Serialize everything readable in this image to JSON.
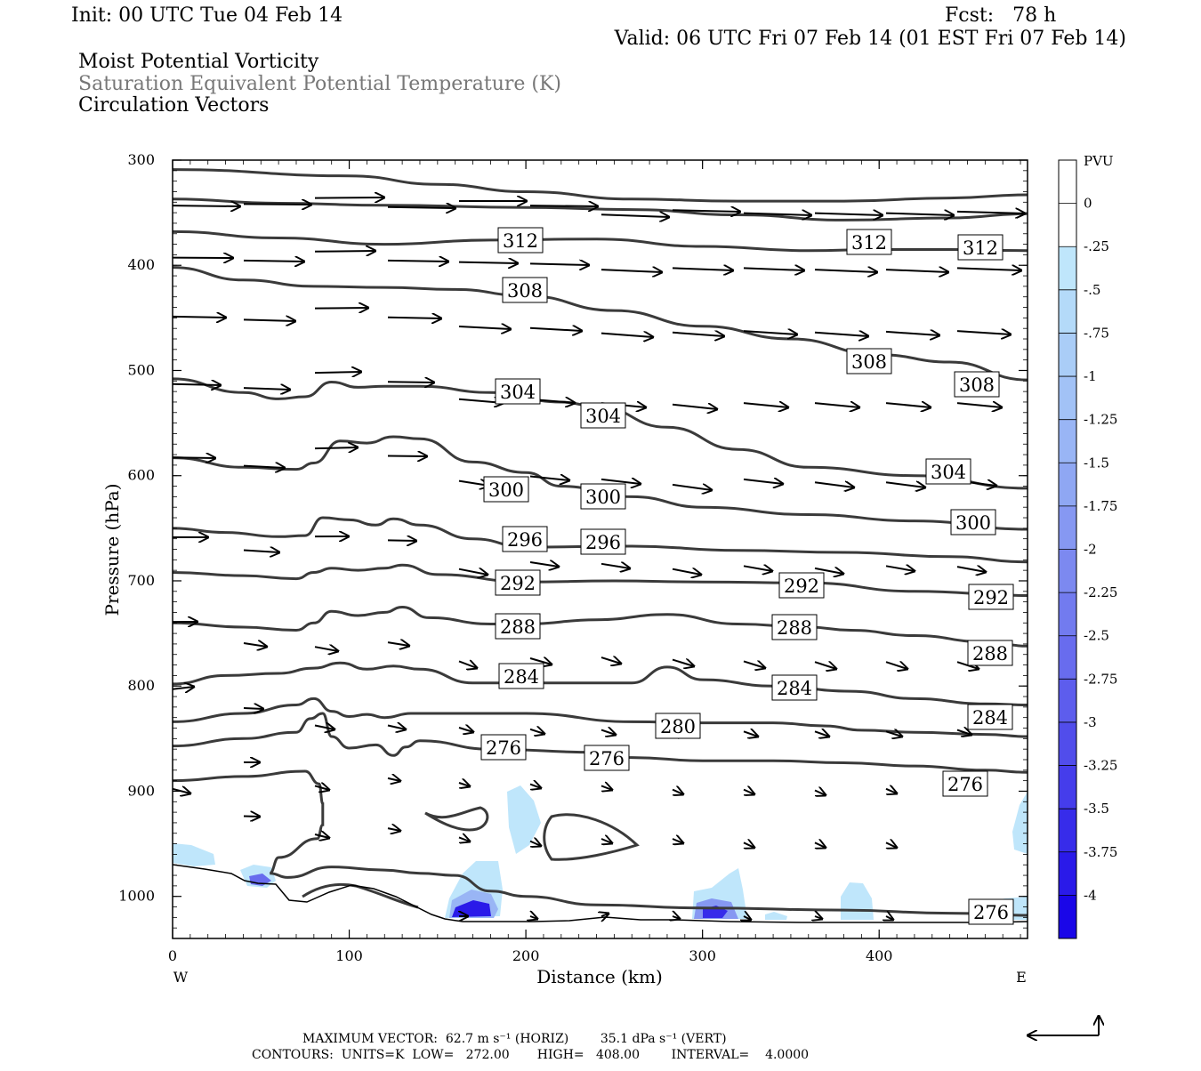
{
  "header": {
    "init": "Init: 00 UTC Tue 04 Feb 14",
    "fcst": "Fcst:   78 h",
    "valid": "Valid: 06 UTC Fri 07 Feb 14 (01 EST Fri 07 Feb 14)",
    "field1": "Moist Potential Vorticity",
    "field2": "Saturation Equivalent Potential Temperature (K)",
    "field3": "Circulation Vectors"
  },
  "colorbar": {
    "title": "PVU",
    "labels": [
      "0",
      "-.25",
      "-.5",
      "-.75",
      "-1",
      "-1.25",
      "-1.5",
      "-1.75",
      "-2",
      "-2.25",
      "-2.5",
      "-2.75",
      "-3",
      "-3.25",
      "-3.5",
      "-3.75",
      "-4"
    ],
    "colors": [
      "#ffffff",
      "#ffffff",
      "#bfe6fb",
      "#b4daf9",
      "#aacdf7",
      "#a2c2f6",
      "#99b5f5",
      "#8fa7f3",
      "#8698f2",
      "#7c89f0",
      "#727bef",
      "#686cee",
      "#5d5ded",
      "#514deb",
      "#453deb",
      "#372cea",
      "#2a1ae9",
      "#1a06e8"
    ]
  },
  "footer": {
    "max_vector": "MAXIMUM VECTOR:  62.7 m s⁻¹ (HORIZ)        35.1 dPa s⁻¹ (VERT)",
    "contours": "CONTOURS:  UNITS=K  LOW=   272.00       HIGH=   408.00        INTERVAL=    4.0000"
  },
  "chart_data": {
    "type": "cross-section",
    "xlabel": "Distance (km)",
    "ylabel": "Pressure (hPa)",
    "xlim": [
      0,
      484
    ],
    "ylim": [
      1040,
      300
    ],
    "x_ticks": [
      0,
      100,
      200,
      300,
      400
    ],
    "y_ticks": [
      300,
      400,
      500,
      600,
      700,
      800,
      900,
      1000
    ],
    "x_end_labels": {
      "left": "W",
      "right": "E"
    },
    "y_scale": "linear",
    "series": [
      {
        "name": "312",
        "points": [
          [
            0,
            309
          ],
          [
            100,
            315
          ],
          [
            150,
            323
          ],
          [
            200,
            330
          ],
          [
            260,
            337
          ],
          [
            320,
            339
          ],
          [
            380,
            339
          ],
          [
            440,
            336
          ],
          [
            484,
            333
          ]
        ]
      },
      {
        "name": "312",
        "points": [
          [
            0,
            337
          ],
          [
            60,
            341
          ],
          [
            120,
            343
          ],
          [
            200,
            345
          ],
          [
            260,
            347
          ],
          [
            320,
            352
          ],
          [
            380,
            357
          ],
          [
            440,
            355
          ],
          [
            484,
            351
          ]
        ]
      },
      {
        "name": "312",
        "points": [
          [
            0,
            368
          ],
          [
            60,
            374
          ],
          [
            120,
            380
          ],
          [
            180,
            376
          ],
          [
            240,
            375
          ],
          [
            300,
            382
          ],
          [
            360,
            386
          ],
          [
            400,
            385
          ],
          [
            440,
            385
          ],
          [
            484,
            386
          ]
        ]
      },
      {
        "name": "308",
        "points": [
          [
            0,
            402
          ],
          [
            40,
            414
          ],
          [
            80,
            420
          ],
          [
            120,
            421
          ],
          [
            160,
            423
          ],
          [
            200,
            429
          ],
          [
            250,
            443
          ],
          [
            300,
            458
          ],
          [
            350,
            470
          ],
          [
            400,
            485
          ],
          [
            440,
            492
          ],
          [
            484,
            509
          ]
        ]
      },
      {
        "name": "308",
        "points": [
          [
            0,
            508
          ],
          [
            40,
            521
          ],
          [
            60,
            527
          ],
          [
            75,
            525
          ],
          [
            90,
            511
          ],
          [
            105,
            516
          ],
          [
            120,
            515
          ],
          [
            140,
            515
          ],
          [
            180,
            521
          ],
          [
            220,
            530
          ],
          [
            240,
            534
          ],
          [
            280,
            554
          ],
          [
            320,
            575
          ],
          [
            360,
            592
          ],
          [
            420,
            600
          ],
          [
            484,
            612
          ]
        ]
      },
      {
        "name": "304",
        "points": [
          [
            0,
            583
          ],
          [
            40,
            592
          ],
          [
            70,
            594
          ],
          [
            80,
            588
          ],
          [
            95,
            567
          ],
          [
            110,
            569
          ],
          [
            125,
            563
          ],
          [
            140,
            565
          ],
          [
            170,
            587
          ],
          [
            200,
            597
          ],
          [
            220,
            610
          ],
          [
            260,
            620
          ],
          [
            300,
            630
          ],
          [
            360,
            637
          ],
          [
            420,
            643
          ],
          [
            484,
            651
          ]
        ]
      },
      {
        "name": "300",
        "points": [
          [
            0,
            650
          ],
          [
            30,
            654
          ],
          [
            60,
            658
          ],
          [
            75,
            657
          ],
          [
            85,
            640
          ],
          [
            100,
            642
          ],
          [
            115,
            647
          ],
          [
            125,
            641
          ],
          [
            140,
            647
          ],
          [
            170,
            660
          ],
          [
            200,
            668
          ],
          [
            260,
            667
          ],
          [
            320,
            671
          ],
          [
            380,
            673
          ],
          [
            440,
            677
          ],
          [
            484,
            682
          ]
        ]
      },
      {
        "name": "296",
        "points": [
          [
            0,
            692
          ],
          [
            40,
            695
          ],
          [
            70,
            698
          ],
          [
            80,
            692
          ],
          [
            90,
            688
          ],
          [
            105,
            690
          ],
          [
            120,
            688
          ],
          [
            130,
            685
          ],
          [
            150,
            694
          ],
          [
            200,
            701
          ],
          [
            250,
            700
          ],
          [
            300,
            701
          ],
          [
            360,
            702
          ],
          [
            420,
            710
          ],
          [
            484,
            714
          ]
        ]
      },
      {
        "name": "292",
        "points": [
          [
            0,
            740
          ],
          [
            40,
            744
          ],
          [
            70,
            747
          ],
          [
            80,
            740
          ],
          [
            90,
            729
          ],
          [
            105,
            733
          ],
          [
            120,
            730
          ],
          [
            130,
            725
          ],
          [
            145,
            735
          ],
          [
            180,
            741
          ],
          [
            200,
            741
          ],
          [
            240,
            737
          ],
          [
            280,
            732
          ],
          [
            320,
            741
          ],
          [
            360,
            744
          ],
          [
            384,
            747
          ],
          [
            420,
            752
          ],
          [
            460,
            758
          ],
          [
            484,
            762
          ]
        ]
      },
      {
        "name": "288",
        "points": [
          [
            0,
            798
          ],
          [
            30,
            790
          ],
          [
            60,
            788
          ],
          [
            80,
            783
          ],
          [
            95,
            778
          ],
          [
            110,
            784
          ],
          [
            125,
            781
          ],
          [
            140,
            784
          ],
          [
            170,
            797
          ],
          [
            200,
            797
          ],
          [
            240,
            797
          ],
          [
            260,
            797
          ],
          [
            280,
            782
          ],
          [
            300,
            794
          ],
          [
            340,
            800
          ],
          [
            384,
            805
          ],
          [
            420,
            812
          ],
          [
            460,
            817
          ],
          [
            484,
            818
          ]
        ]
      },
      {
        "name": "284",
        "points": [
          [
            0,
            834
          ],
          [
            40,
            826
          ],
          [
            70,
            818
          ],
          [
            80,
            812
          ],
          [
            90,
            824
          ],
          [
            100,
            829
          ],
          [
            110,
            827
          ],
          [
            120,
            830
          ],
          [
            135,
            826
          ],
          [
            160,
            826
          ],
          [
            200,
            826
          ],
          [
            260,
            834
          ],
          [
            300,
            835
          ],
          [
            340,
            835
          ],
          [
            370,
            838
          ],
          [
            390,
            842
          ],
          [
            420,
            844
          ],
          [
            460,
            846
          ],
          [
            484,
            848
          ]
        ]
      },
      {
        "name": "280",
        "points": [
          [
            0,
            857
          ],
          [
            40,
            850
          ],
          [
            70,
            844
          ],
          [
            78,
            831
          ],
          [
            85,
            826
          ],
          [
            90,
            848
          ],
          [
            100,
            859
          ],
          [
            115,
            856
          ],
          [
            125,
            866
          ],
          [
            132,
            858
          ],
          [
            140,
            852
          ],
          [
            180,
            860
          ],
          [
            240,
            863
          ],
          [
            260,
            868
          ],
          [
            300,
            871
          ],
          [
            340,
            871
          ],
          [
            380,
            873
          ],
          [
            420,
            876
          ],
          [
            460,
            880
          ],
          [
            484,
            882
          ]
        ]
      },
      {
        "name": "276",
        "points": [
          [
            0,
            890
          ],
          [
            40,
            886
          ],
          [
            75,
            881
          ],
          [
            83,
            893
          ],
          [
            85,
            912
          ],
          [
            85,
            932
          ],
          [
            82,
            945
          ],
          [
            60,
            963
          ],
          [
            55,
            978
          ],
          [
            65,
            982
          ],
          [
            90,
            972
          ],
          [
            120,
            975
          ],
          [
            140,
            978
          ],
          [
            160,
            980
          ],
          [
            180,
            995
          ],
          [
            200,
            1000
          ],
          [
            240,
            1008
          ],
          [
            300,
            1011
          ],
          [
            380,
            1013
          ],
          [
            440,
            1016
          ],
          [
            484,
            1018
          ]
        ]
      }
    ],
    "contour_labels": [
      "312",
      "312",
      "312",
      "308",
      "308",
      "308",
      "304",
      "304",
      "304",
      "300",
      "300",
      "300",
      "296",
      "296",
      "292",
      "292",
      "292",
      "288",
      "288",
      "288",
      "284",
      "284",
      "284",
      "280",
      "276",
      "276",
      "276",
      "276"
    ],
    "vector_rows_hpa": [
      340,
      390,
      445,
      512,
      580,
      660,
      700,
      757,
      810,
      857,
      893,
      925,
      945
    ]
  }
}
